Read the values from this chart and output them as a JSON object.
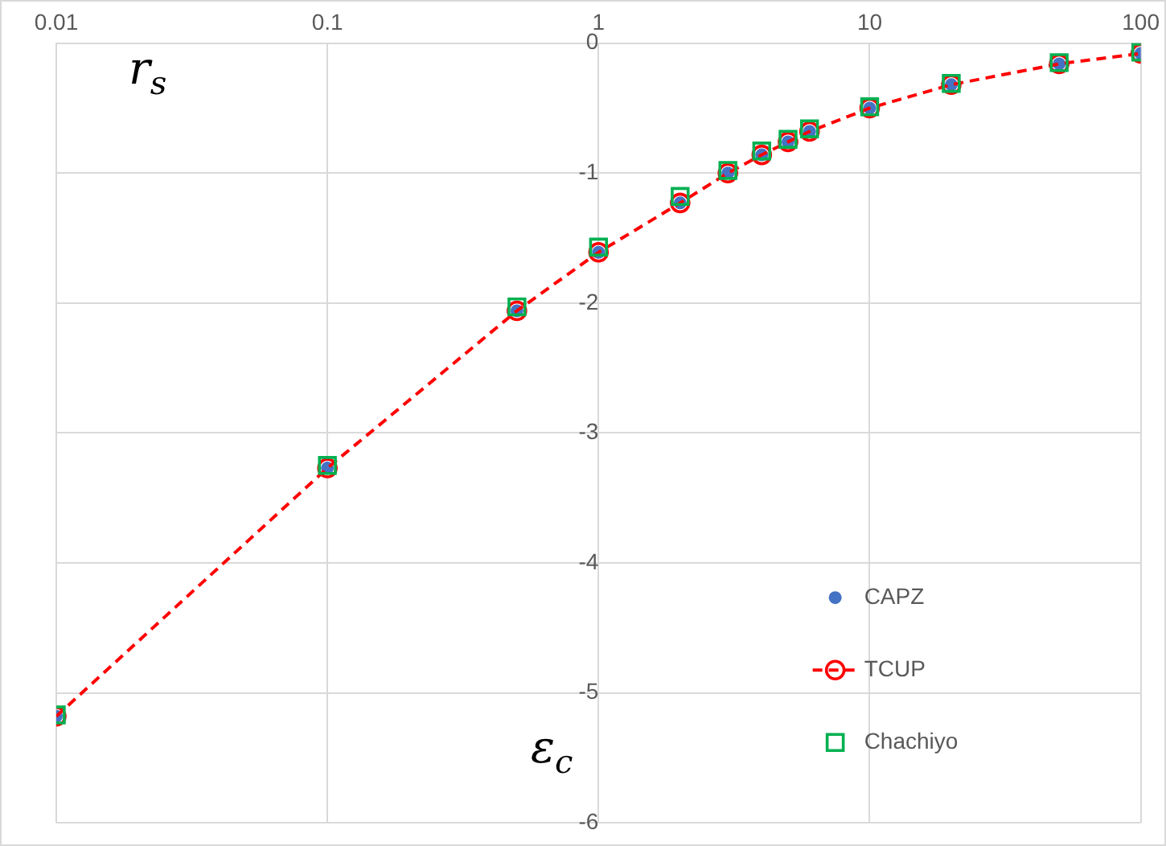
{
  "chart_data": {
    "type": "scatter",
    "xlabel": "r$_{s}$",
    "ylabel": "ε$_{c}$",
    "x": [
      0.01,
      0.1,
      0.5,
      1,
      2,
      3,
      4,
      5,
      6,
      10,
      20,
      50,
      100
    ],
    "series": [
      {
        "name": "CAPZ",
        "type": "scatter",
        "color": "#4472c4",
        "marker": "circle",
        "values": [
          -5.18,
          -3.27,
          -2.06,
          -1.61,
          -1.23,
          -1.0,
          -0.86,
          -0.76,
          -0.68,
          -0.5,
          -0.32,
          -0.16,
          -0.08
        ]
      },
      {
        "name": "TCUP",
        "type": "line",
        "color": "#ff0000",
        "marker": "circle",
        "line_style": "dashed",
        "values": [
          -5.18,
          -3.27,
          -2.06,
          -1.61,
          -1.23,
          -1.0,
          -0.86,
          -0.76,
          -0.68,
          -0.5,
          -0.32,
          -0.16,
          -0.08
        ]
      },
      {
        "name": "Chachiyo",
        "type": "scatter",
        "color": "#00b050",
        "marker": "square",
        "values": [
          -5.17,
          -3.25,
          -2.03,
          -1.57,
          -1.18,
          -0.98,
          -0.83,
          -0.74,
          -0.66,
          -0.49,
          -0.31,
          -0.15,
          -0.07
        ]
      }
    ],
    "log": "x",
    "xlim": [
      0.01,
      100
    ],
    "xticks": [
      0.01,
      0.1,
      1,
      10,
      100
    ],
    "ylim": [
      -6,
      0
    ],
    "yticks": [
      0,
      -1,
      -2,
      -3,
      -4,
      -5,
      -6
    ],
    "grid": true,
    "legend": "bottom right"
  }
}
